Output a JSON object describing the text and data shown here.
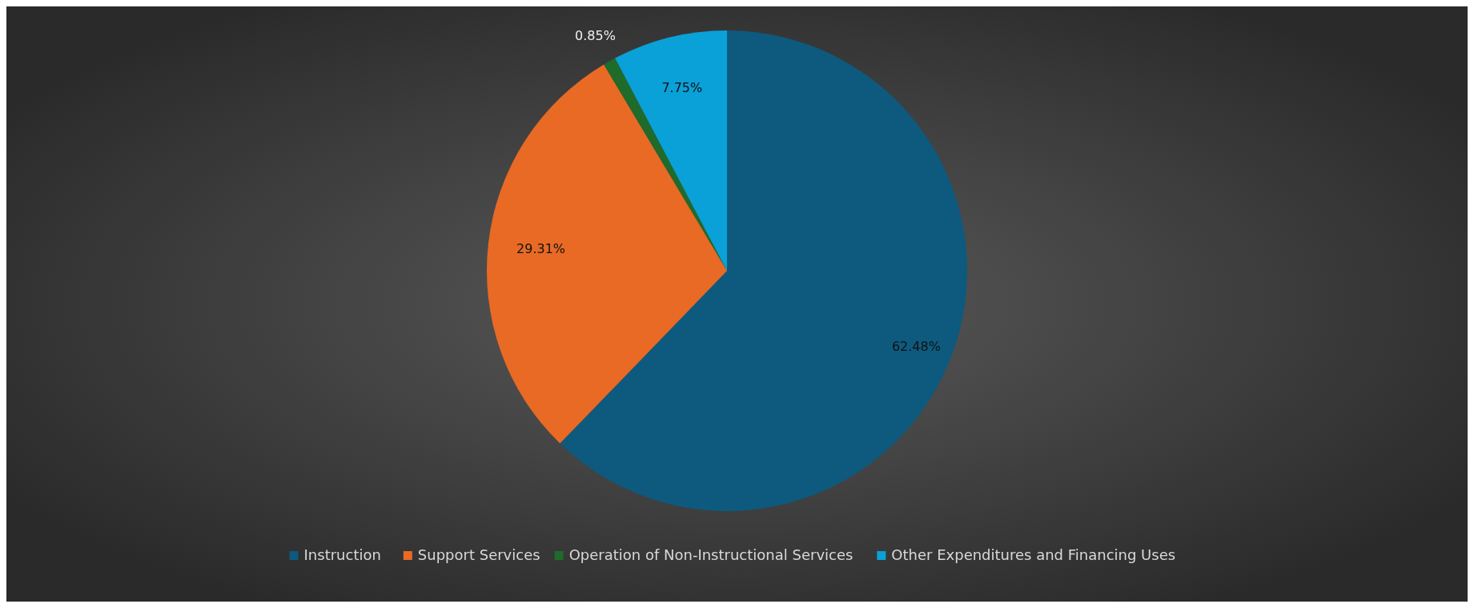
{
  "chart_data": {
    "type": "pie",
    "categories": [
      "Instruction",
      "Support Services",
      "Operation of Non-Instructional Services",
      "Other Expenditures and Financing Uses"
    ],
    "values": [
      62.48,
      29.31,
      0.85,
      7.75
    ],
    "colors": [
      "#0d5a7e",
      "#e86a25",
      "#1f6b2a",
      "#0aa0d8"
    ],
    "value_labels": [
      "62.48%",
      "29.31%",
      "0.85%",
      "7.75%"
    ],
    "legend": "bottom"
  }
}
